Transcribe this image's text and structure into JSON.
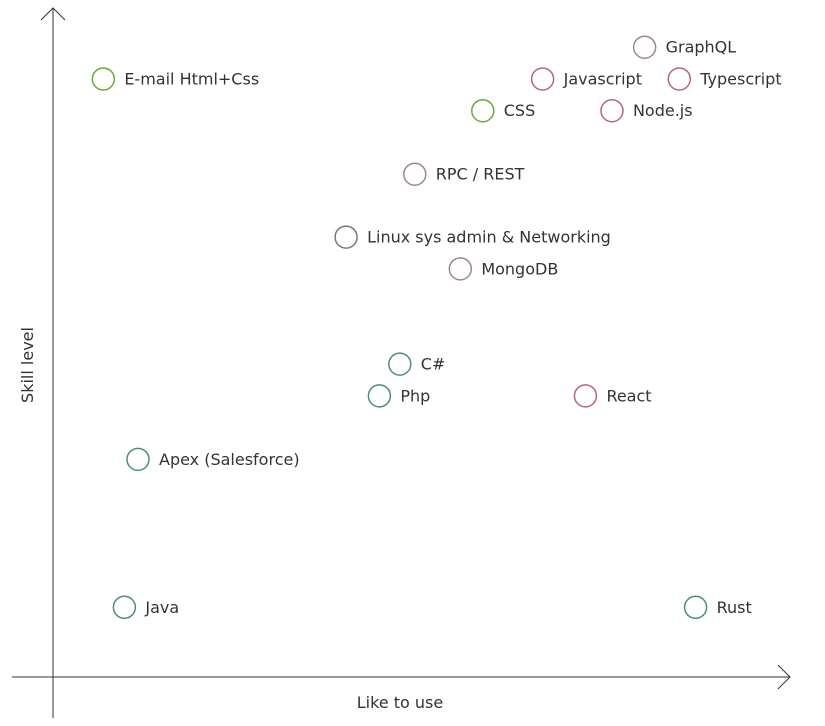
{
  "chart_data": {
    "type": "scatter",
    "title": "",
    "xlabel": "Like to use",
    "ylabel": "Skill level",
    "xlim": [
      0,
      100
    ],
    "ylim": [
      0,
      100
    ],
    "grid": false,
    "legend": "none",
    "colors": {
      "green": "#6aaa3a",
      "teal": "#4a8f82",
      "rose": "#b8667a",
      "mauve": "#9b8694",
      "gray": "#7a7a72"
    },
    "points": [
      {
        "label": "GraphQL",
        "x": 84.5,
        "y": 96.5,
        "color": "mauve"
      },
      {
        "label": "E-mail Html+Css",
        "x": 4.9,
        "y": 91.5,
        "color": "green"
      },
      {
        "label": "Javascript",
        "x": 69.5,
        "y": 91.5,
        "color": "rose"
      },
      {
        "label": "Typescript",
        "x": 89.6,
        "y": 91.5,
        "color": "rose"
      },
      {
        "label": "CSS",
        "x": 60.7,
        "y": 86.5,
        "color": "green"
      },
      {
        "label": "Node.js",
        "x": 79.7,
        "y": 86.5,
        "color": "rose"
      },
      {
        "label": "RPC / REST",
        "x": 50.7,
        "y": 76.5,
        "color": "mauve"
      },
      {
        "label": "Linux sys admin & Networking",
        "x": 40.6,
        "y": 66.6,
        "color": "gray"
      },
      {
        "label": "MongoDB",
        "x": 57.4,
        "y": 61.6,
        "color": "mauve"
      },
      {
        "label": "C#",
        "x": 48.5,
        "y": 46.6,
        "color": "teal"
      },
      {
        "label": "Php",
        "x": 45.5,
        "y": 41.6,
        "color": "teal"
      },
      {
        "label": "React",
        "x": 75.8,
        "y": 41.6,
        "color": "rose"
      },
      {
        "label": "Apex (Salesforce)",
        "x": 10.0,
        "y": 31.6,
        "color": "teal"
      },
      {
        "label": "Java",
        "x": 8.0,
        "y": 8.3,
        "color": "teal"
      },
      {
        "label": "Rust",
        "x": 92.0,
        "y": 8.3,
        "color": "teal"
      }
    ]
  }
}
